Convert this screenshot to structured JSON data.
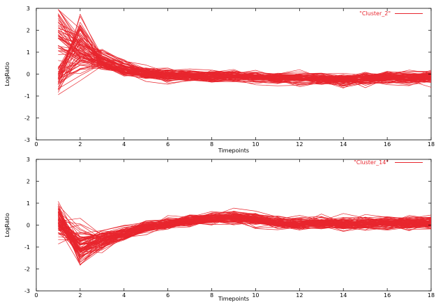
{
  "series_color": "#e8262e",
  "chart_data": [
    {
      "type": "line",
      "title": "",
      "xlabel": "Timepoints",
      "ylabel": "LogRatio",
      "xlim": [
        0,
        18
      ],
      "ylim": [
        -3,
        3
      ],
      "x_ticks": [
        "0",
        "2",
        "4",
        "6",
        "8",
        "10",
        "12",
        "14",
        "16",
        "18"
      ],
      "y_ticks": [
        "3",
        "2",
        "1",
        "0",
        "-1",
        "-2",
        "-3"
      ],
      "grid": false,
      "legend": {
        "placement": "top-right",
        "label": "\"Cluster_2\""
      },
      "series_count": 90,
      "x": [
        1,
        2,
        3,
        4,
        5,
        6,
        7,
        8,
        9,
        10,
        11,
        12,
        13,
        14,
        15,
        16,
        17,
        18
      ],
      "series": [
        {
          "values": [
            1.5,
            0.9,
            0.5,
            0.2,
            0.0,
            -0.1,
            -0.1,
            -0.15,
            -0.1,
            -0.15,
            -0.2,
            -0.2,
            -0.25,
            -0.3,
            -0.25,
            -0.2,
            -0.25,
            -0.2
          ]
        },
        {
          "values": [
            0.0,
            1.9,
            0.6,
            0.2,
            0.0,
            -0.1,
            -0.1,
            -0.1,
            -0.15,
            -0.15,
            -0.2,
            -0.2,
            -0.25,
            -0.3,
            -0.2,
            -0.2,
            -0.2,
            -0.15
          ]
        },
        {
          "values": [
            -0.3,
            0.5,
            0.4,
            0.1,
            0.0,
            -0.05,
            -0.1,
            -0.1,
            -0.1,
            -0.1,
            -0.15,
            -0.2,
            -0.2,
            -0.25,
            -0.2,
            -0.15,
            -0.15,
            -0.1
          ]
        },
        {
          "values": [
            2.3,
            1.2,
            0.8,
            0.4,
            0.1,
            0.0,
            -0.1,
            -0.1,
            -0.1,
            -0.15,
            -0.2,
            -0.2,
            -0.2,
            -0.25,
            -0.2,
            -0.2,
            -0.2,
            -0.15
          ]
        }
      ],
      "notes": "Representative shape of the red profile bundle: scattered start at t=1, peak around t=2, settling near 0 to -0.3."
    },
    {
      "type": "line",
      "title": "",
      "xlabel": "Timepoints",
      "ylabel": "LogRatio",
      "xlim": [
        0,
        18
      ],
      "ylim": [
        -3,
        3
      ],
      "x_ticks": [
        "0",
        "2",
        "4",
        "6",
        "8",
        "10",
        "12",
        "14",
        "16",
        "18"
      ],
      "y_ticks": [
        "3",
        "2",
        "1",
        "0",
        "-1",
        "-2",
        "-3"
      ],
      "grid": false,
      "legend": {
        "placement": "top-right",
        "label": "\"Cluster_14\""
      },
      "series_count": 90,
      "x": [
        1,
        2,
        3,
        4,
        5,
        6,
        7,
        8,
        9,
        10,
        11,
        12,
        13,
        14,
        15,
        16,
        17,
        18
      ],
      "series": [
        {
          "values": [
            0.3,
            -1.0,
            -0.7,
            -0.4,
            -0.1,
            0.05,
            0.2,
            0.3,
            0.35,
            0.25,
            0.1,
            0.05,
            0.1,
            0.05,
            0.1,
            0.1,
            0.05,
            0.1
          ]
        },
        {
          "values": [
            0.5,
            -1.3,
            -0.9,
            -0.5,
            -0.15,
            0.0,
            0.15,
            0.25,
            0.3,
            0.2,
            0.05,
            0.0,
            0.05,
            0.0,
            0.05,
            0.05,
            0.0,
            0.05
          ]
        },
        {
          "values": [
            0.1,
            -0.6,
            -0.5,
            -0.3,
            -0.05,
            0.1,
            0.25,
            0.35,
            0.4,
            0.3,
            0.15,
            0.1,
            0.15,
            0.1,
            0.15,
            0.15,
            0.1,
            0.15
          ]
        }
      ],
      "notes": "Representative shape of the red profile bundle: dip to about -1 around t=2, recovery to ~0.3 by t=8-9, then near 0."
    }
  ]
}
